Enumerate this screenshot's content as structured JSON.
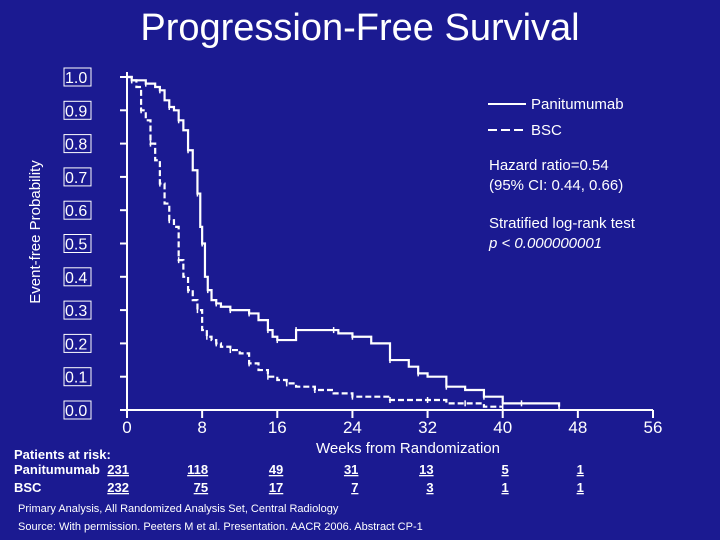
{
  "chart_data": {
    "type": "line",
    "title": "Progression-Free Survival",
    "xlabel": "Weeks from Randomization",
    "ylabel": "Event-free Probability",
    "xlim": [
      0,
      56
    ],
    "ylim": [
      0,
      1.0
    ],
    "x_ticks": [
      "0",
      "8",
      "16",
      "24",
      "32",
      "40",
      "48",
      "56"
    ],
    "y_ticks": [
      "0.0",
      "0.1",
      "0.2",
      "0.3",
      "0.4",
      "0.5",
      "0.6",
      "0.7",
      "0.8",
      "0.9",
      "1.0"
    ],
    "grid": false,
    "legend_position": "top-right",
    "series": [
      {
        "name": "Panitumumab",
        "style": "solid",
        "x": [
          0,
          0.5,
          1,
          2,
          3,
          3.5,
          4,
          4.5,
          5,
          5.5,
          6,
          6.5,
          7,
          7.5,
          7.8,
          8,
          8.3,
          8.6,
          9,
          9.5,
          10,
          11,
          12,
          13,
          14,
          15,
          15.5,
          16,
          17,
          18,
          20,
          22,
          22.5,
          24,
          26,
          28,
          30,
          31,
          32,
          34,
          36,
          38,
          40,
          42,
          44,
          46
        ],
        "y": [
          1.0,
          0.99,
          0.99,
          0.98,
          0.97,
          0.96,
          0.93,
          0.91,
          0.9,
          0.87,
          0.84,
          0.78,
          0.72,
          0.65,
          0.55,
          0.5,
          0.4,
          0.36,
          0.33,
          0.32,
          0.31,
          0.3,
          0.3,
          0.29,
          0.27,
          0.24,
          0.22,
          0.21,
          0.21,
          0.24,
          0.24,
          0.24,
          0.23,
          0.22,
          0.2,
          0.15,
          0.13,
          0.11,
          0.1,
          0.07,
          0.06,
          0.04,
          0.02,
          0.02,
          0.02,
          0.01
        ]
      },
      {
        "name": "BSC",
        "style": "dashed",
        "x": [
          0,
          0.5,
          1,
          1.5,
          2,
          2.5,
          3,
          3.5,
          4,
          4.5,
          5,
          5.5,
          6,
          6.5,
          7,
          7.5,
          8,
          8.5,
          9,
          9.5,
          10,
          11,
          12,
          13,
          14,
          15,
          16,
          17,
          18,
          20,
          22,
          24,
          26,
          28,
          30,
          32,
          34,
          36,
          38,
          40
        ],
        "y": [
          1.0,
          0.99,
          0.97,
          0.9,
          0.87,
          0.8,
          0.75,
          0.68,
          0.62,
          0.57,
          0.55,
          0.45,
          0.4,
          0.36,
          0.33,
          0.3,
          0.24,
          0.22,
          0.21,
          0.2,
          0.19,
          0.18,
          0.17,
          0.14,
          0.12,
          0.1,
          0.09,
          0.08,
          0.07,
          0.06,
          0.05,
          0.04,
          0.04,
          0.03,
          0.03,
          0.03,
          0.02,
          0.02,
          0.01,
          0.01
        ]
      }
    ]
  },
  "legend": {
    "items": [
      {
        "label": "Panitumumab",
        "dash": "none"
      },
      {
        "label": "BSC",
        "dash": "9,4"
      }
    ]
  },
  "annotations": {
    "hazard_line1": "Hazard ratio=0.54",
    "hazard_line2": "(95% CI: 0.44, 0.66)",
    "logrank_line1": "Stratified log-rank test",
    "logrank_line2": "p < 0.000000001"
  },
  "risk_table": {
    "title": "Patients at risk:",
    "rows": [
      {
        "label": "Panitumumab",
        "values": [
          "231",
          "118",
          "49",
          "31",
          "13",
          "5",
          "1"
        ]
      },
      {
        "label": "BSC",
        "values": [
          "232",
          "75",
          "17",
          "7",
          "3",
          "1",
          "1"
        ]
      }
    ]
  },
  "footnotes": {
    "line1": "Primary Analysis, All Randomized Analysis Set, Central Radiology",
    "line2": "Source: With permission. Peeters M et al. Presentation. AACR 2006. Abstract CP-1"
  },
  "colors": {
    "background": "#1b1a91",
    "foreground": "#ffffff"
  }
}
